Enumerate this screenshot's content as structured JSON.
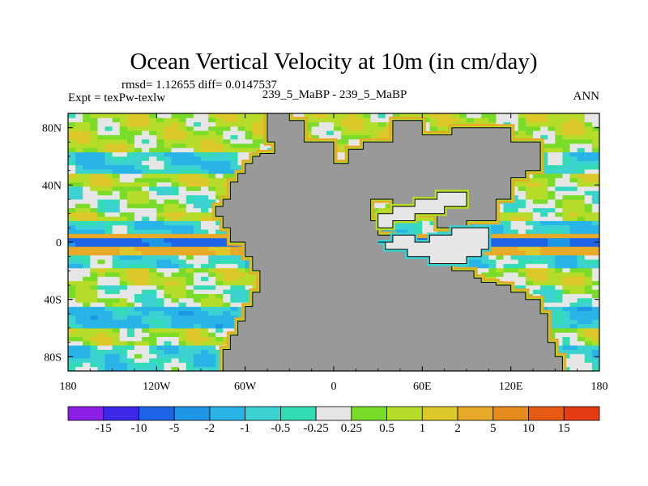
{
  "chart_data": {
    "type": "heatmap",
    "title": "Ocean Vertical Velocity at 10m (in cm/day)",
    "stats_line": "rmsd= 1.12655 diff= 0.0147537",
    "left_label": "Expt = texPw-texlw",
    "center_label": "239_5_MaBP - 239_5_MaBP",
    "right_label": "ANN",
    "xlim": [
      -180,
      180
    ],
    "ylim": [
      -90,
      90
    ],
    "x_ticks": [
      {
        "value": -180,
        "label": "180"
      },
      {
        "value": -120,
        "label": "120W"
      },
      {
        "value": -60,
        "label": "60W"
      },
      {
        "value": 0,
        "label": "0"
      },
      {
        "value": 60,
        "label": "60E"
      },
      {
        "value": 120,
        "label": "120E"
      },
      {
        "value": 180,
        "label": "180"
      }
    ],
    "y_ticks": [
      {
        "value": 80,
        "label": "80N"
      },
      {
        "value": 40,
        "label": "40N"
      },
      {
        "value": 0,
        "label": "0"
      },
      {
        "value": -40,
        "label": "40S"
      },
      {
        "value": -80,
        "label": "80S"
      }
    ],
    "colorbar": {
      "colors": [
        "#8c1ee6",
        "#3c28e6",
        "#1e64e6",
        "#1e96e6",
        "#28b4e6",
        "#3cd2d2",
        "#32dcb4",
        "#e6e6e6",
        "#78dc28",
        "#b4dc28",
        "#dcc828",
        "#e6aa28",
        "#e68c1e",
        "#e65a14",
        "#e63c14"
      ],
      "labels": [
        "-15",
        "-10",
        "-5",
        "-2",
        "-1",
        "-0.5",
        "-0.25",
        "0.25",
        "0.5",
        "1",
        "2",
        "5",
        "10",
        "15"
      ]
    },
    "land_color": "#999999",
    "continent_outline_lonlat": [
      [
        -45,
        90
      ],
      [
        -45,
        70
      ],
      [
        -40,
        70
      ],
      [
        -40,
        62
      ],
      [
        -50,
        62
      ],
      [
        -50,
        60
      ],
      [
        -55,
        60
      ],
      [
        -55,
        55
      ],
      [
        -60,
        55
      ],
      [
        -60,
        48
      ],
      [
        -65,
        48
      ],
      [
        -65,
        42
      ],
      [
        -70,
        42
      ],
      [
        -70,
        30
      ],
      [
        -75,
        30
      ],
      [
        -75,
        25
      ],
      [
        -80,
        25
      ],
      [
        -80,
        18
      ],
      [
        -75,
        18
      ],
      [
        -75,
        10
      ],
      [
        -70,
        10
      ],
      [
        -70,
        0
      ],
      [
        -60,
        0
      ],
      [
        -60,
        -10
      ],
      [
        -55,
        -10
      ],
      [
        -55,
        -20
      ],
      [
        -50,
        -20
      ],
      [
        -50,
        -35
      ],
      [
        -55,
        -35
      ],
      [
        -55,
        -45
      ],
      [
        -60,
        -45
      ],
      [
        -60,
        -55
      ],
      [
        -65,
        -55
      ],
      [
        -65,
        -65
      ],
      [
        -70,
        -65
      ],
      [
        -70,
        -75
      ],
      [
        -75,
        -75
      ],
      [
        -75,
        -90
      ],
      [
        155,
        -90
      ],
      [
        155,
        -80
      ],
      [
        150,
        -80
      ],
      [
        150,
        -70
      ],
      [
        145,
        -70
      ],
      [
        145,
        -50
      ],
      [
        140,
        -50
      ],
      [
        140,
        -40
      ],
      [
        130,
        -40
      ],
      [
        130,
        -35
      ],
      [
        120,
        -35
      ],
      [
        120,
        -30
      ],
      [
        110,
        -30
      ],
      [
        110,
        -28
      ],
      [
        100,
        -28
      ],
      [
        100,
        -25
      ],
      [
        95,
        -25
      ],
      [
        95,
        -20
      ],
      [
        80,
        -20
      ],
      [
        80,
        -15
      ],
      [
        70,
        -15
      ],
      [
        70,
        -10
      ],
      [
        55,
        -10
      ],
      [
        55,
        -5
      ],
      [
        45,
        -5
      ],
      [
        45,
        0
      ],
      [
        40,
        0
      ],
      [
        40,
        5
      ],
      [
        30,
        5
      ],
      [
        30,
        15
      ],
      [
        25,
        15
      ],
      [
        25,
        30
      ],
      [
        40,
        30
      ],
      [
        40,
        25
      ],
      [
        60,
        25
      ],
      [
        60,
        20
      ],
      [
        70,
        20
      ],
      [
        70,
        10
      ],
      [
        90,
        10
      ],
      [
        90,
        15
      ],
      [
        110,
        15
      ],
      [
        110,
        30
      ],
      [
        120,
        30
      ],
      [
        120,
        45
      ],
      [
        130,
        45
      ],
      [
        130,
        50
      ],
      [
        140,
        50
      ],
      [
        140,
        70
      ],
      [
        120,
        70
      ],
      [
        120,
        80
      ],
      [
        80,
        80
      ],
      [
        80,
        75
      ],
      [
        60,
        75
      ],
      [
        60,
        85
      ],
      [
        40,
        85
      ],
      [
        40,
        70
      ],
      [
        20,
        70
      ],
      [
        20,
        65
      ],
      [
        10,
        65
      ],
      [
        10,
        55
      ],
      [
        0,
        55
      ],
      [
        0,
        70
      ],
      [
        -20,
        70
      ],
      [
        -20,
        85
      ],
      [
        -30,
        85
      ],
      [
        -30,
        90
      ]
    ],
    "inner_sea_outline_lonlat": [
      [
        30,
        0
      ],
      [
        35,
        0
      ],
      [
        35,
        -5
      ],
      [
        50,
        -5
      ],
      [
        50,
        -10
      ],
      [
        65,
        -10
      ],
      [
        65,
        -15
      ],
      [
        90,
        -15
      ],
      [
        90,
        -10
      ],
      [
        100,
        -10
      ],
      [
        100,
        -5
      ],
      [
        105,
        -5
      ],
      [
        105,
        10
      ],
      [
        80,
        10
      ],
      [
        80,
        5
      ],
      [
        65,
        5
      ],
      [
        65,
        0
      ],
      [
        55,
        0
      ],
      [
        55,
        5
      ],
      [
        40,
        5
      ],
      [
        40,
        0
      ],
      [
        30,
        0
      ]
    ],
    "inner_island_outline_lonlat": [
      [
        30,
        20
      ],
      [
        40,
        20
      ],
      [
        40,
        25
      ],
      [
        55,
        25
      ],
      [
        55,
        30
      ],
      [
        70,
        30
      ],
      [
        70,
        35
      ],
      [
        90,
        35
      ],
      [
        90,
        25
      ],
      [
        75,
        25
      ],
      [
        75,
        20
      ],
      [
        55,
        20
      ],
      [
        55,
        15
      ],
      [
        40,
        15
      ],
      [
        40,
        10
      ],
      [
        30,
        10
      ],
      [
        30,
        20
      ]
    ],
    "field_bands": [
      {
        "lat_min": 62,
        "lat_max": 90,
        "value": 0.6
      },
      {
        "lat_min": 48,
        "lat_max": 62,
        "value": -0.8
      },
      {
        "lat_min": 38,
        "lat_max": 48,
        "value": 0.7
      },
      {
        "lat_min": 22,
        "lat_max": 38,
        "value": 0.1
      },
      {
        "lat_min": 14,
        "lat_max": 22,
        "value": 0.6
      },
      {
        "lat_min": 6,
        "lat_max": 14,
        "value": -0.8
      },
      {
        "lat_min": 2,
        "lat_max": 6,
        "value": 3.0
      },
      {
        "lat_min": -2,
        "lat_max": 2,
        "value": -4.0
      },
      {
        "lat_min": -8,
        "lat_max": -2,
        "value": 2.5
      },
      {
        "lat_min": -18,
        "lat_max": -8,
        "value": -0.6
      },
      {
        "lat_min": -30,
        "lat_max": -18,
        "value": 0.6
      },
      {
        "lat_min": -45,
        "lat_max": -30,
        "value": 0.1
      },
      {
        "lat_min": -60,
        "lat_max": -45,
        "value": -1.2
      },
      {
        "lat_min": -72,
        "lat_max": -60,
        "value": 0.5
      },
      {
        "lat_min": -90,
        "lat_max": -72,
        "value": -0.6
      }
    ]
  }
}
